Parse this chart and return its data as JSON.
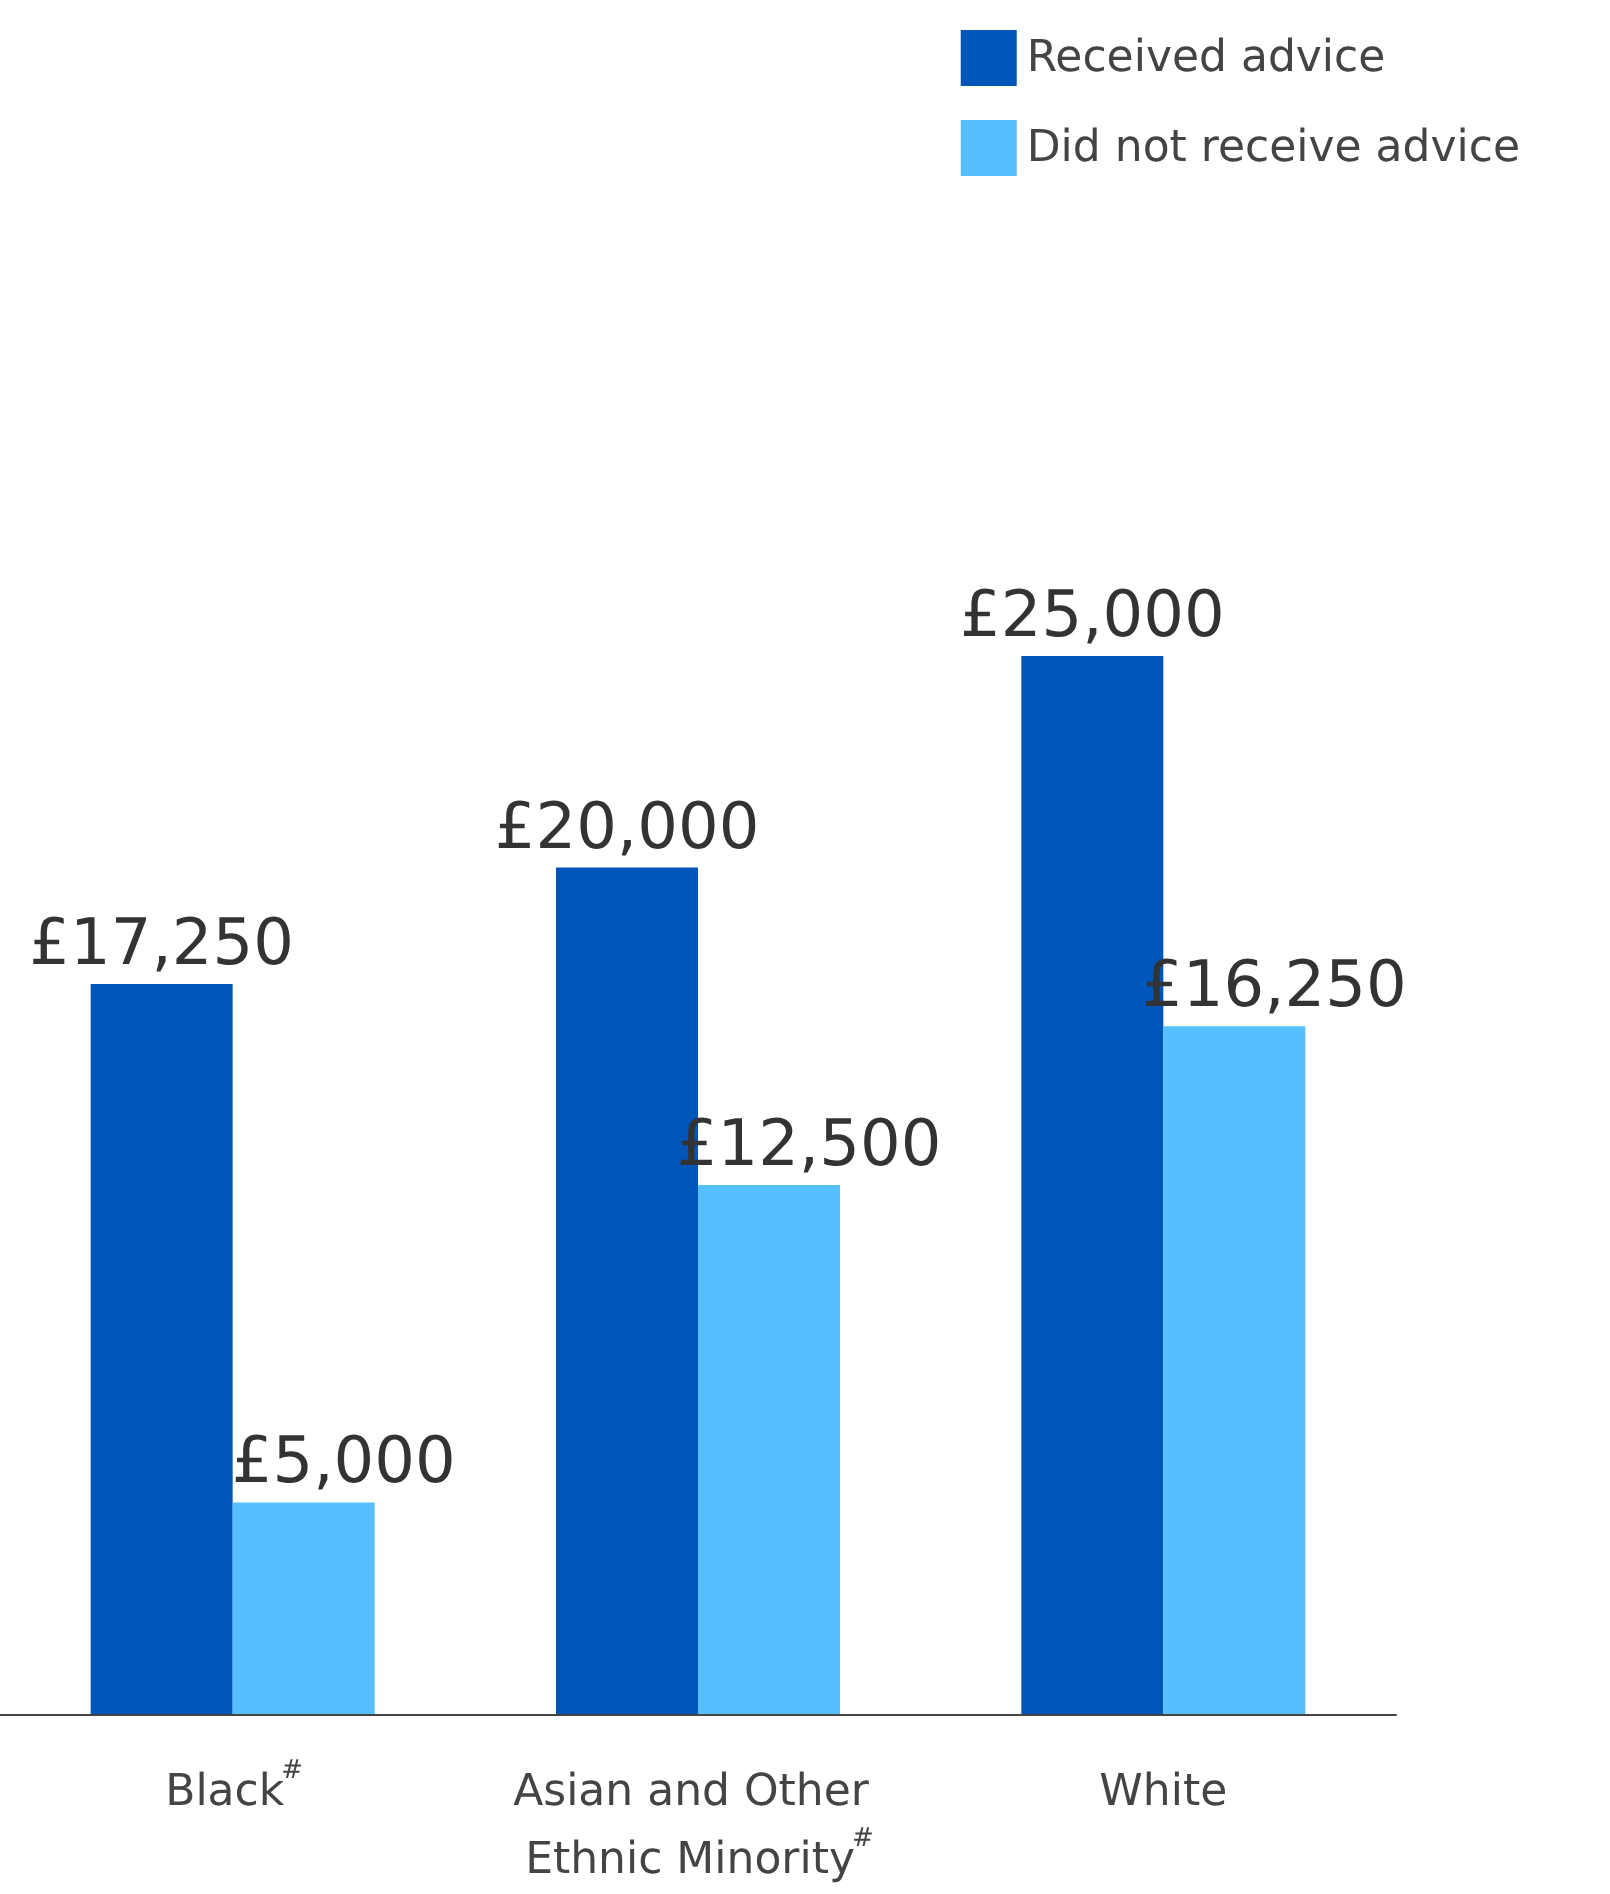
{
  "chart_data": {
    "type": "bar",
    "categories": [
      "Black$^{#}$",
      "Asian and Other Ethnic Minority$^{#}$",
      "White"
    ],
    "series": [
      {
        "name": "Received advice",
        "color": "#0055b8",
        "values": [
          17250,
          20000,
          25000
        ],
        "value_labels": [
          "£17,250",
          "£20,000",
          "£25,000"
        ]
      },
      {
        "name": "Did not receive advice",
        "color": "#55bfff",
        "values": [
          5000,
          12500,
          16250
        ],
        "value_labels": [
          "£5,000",
          "£12,500",
          "£16,250"
        ]
      }
    ],
    "legend": "top right",
    "grid": false
  }
}
